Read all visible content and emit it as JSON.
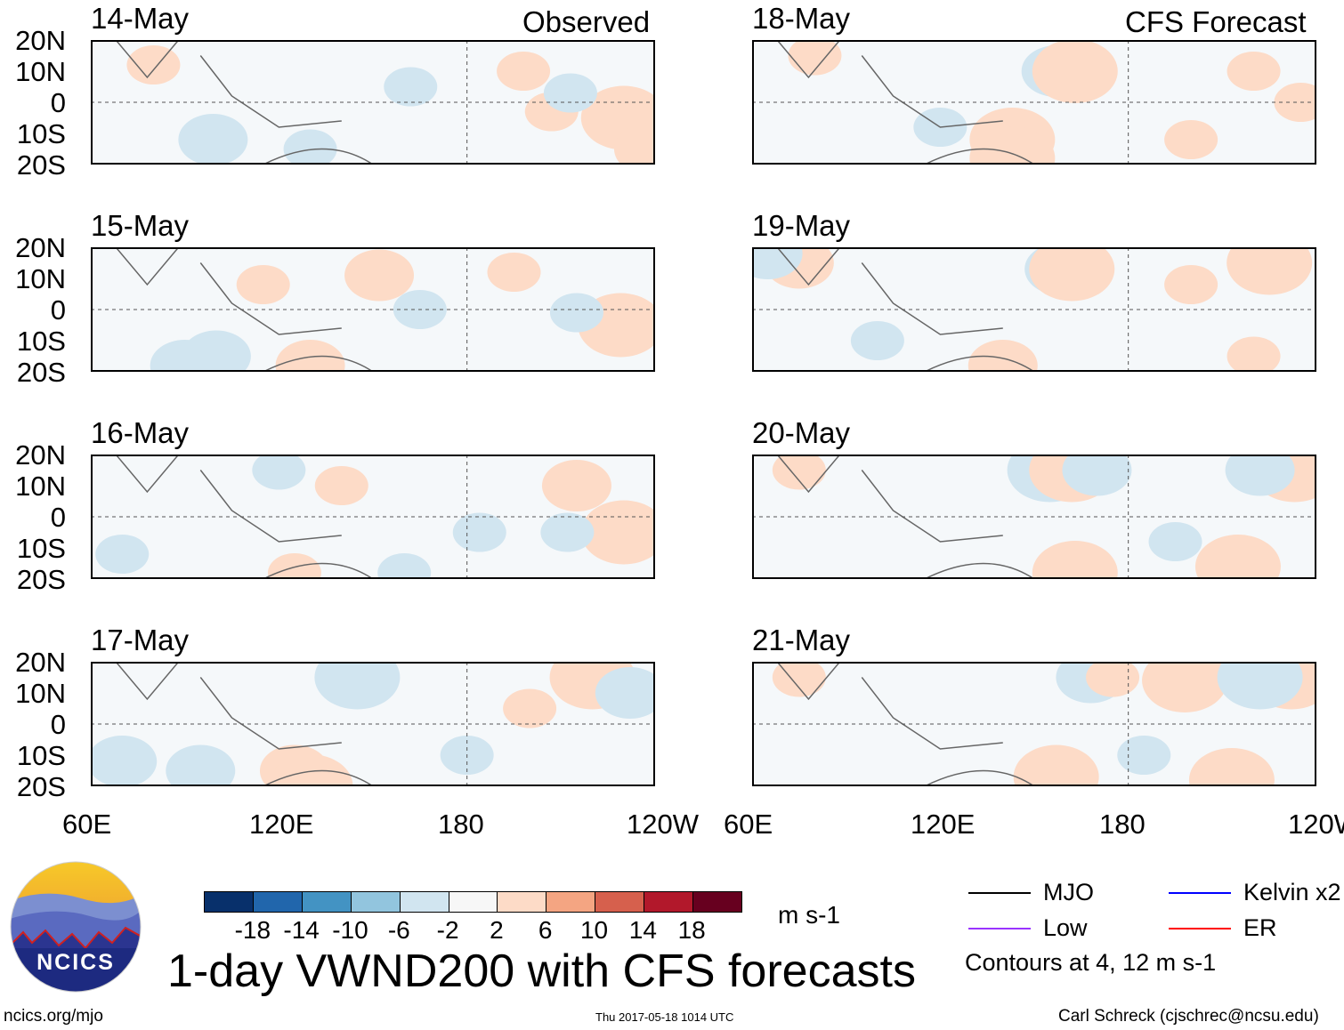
{
  "figure": {
    "title": "1-day VWND200 with CFS forecasts",
    "left_header": "Observed",
    "right_header": "CFS Forecast",
    "footer_left": "ncics.org/mjo",
    "footer_center": "Thu 2017-05-18 1014 UTC",
    "footer_right": "Carl Schreck (cjschrec@ncsu.edu)",
    "logo_text": "NCICS"
  },
  "axes": {
    "lat_labels": [
      "20N",
      "10N",
      "0",
      "10S",
      "20S"
    ],
    "lon_labels": [
      "60E",
      "120E",
      "180",
      "120W"
    ]
  },
  "colorbar": {
    "unit": "m s-1",
    "tick_labels": [
      "-18",
      "-14",
      "-10",
      "-6",
      "-2",
      "2",
      "6",
      "10",
      "14",
      "18"
    ],
    "colors": [
      "#08306b",
      "#2166ac",
      "#4393c3",
      "#92c5de",
      "#d1e5f0",
      "#f7f7f7",
      "#fddbc7",
      "#f4a582",
      "#d6604d",
      "#b2182b",
      "#67001f"
    ]
  },
  "legend": {
    "items": [
      {
        "label": "MJO",
        "color": "#000000"
      },
      {
        "label": "Kelvin x2",
        "color": "#0000ff"
      },
      {
        "label": "Low",
        "color": "#9933ff"
      },
      {
        "label": "ER",
        "color": "#ff0000"
      }
    ],
    "note": "Contours at 4, 12 m s-1"
  },
  "panels": [
    {
      "date": "14-May",
      "blobs": [
        [
          198,
          10,
          8
        ],
        [
          230,
          -5,
          14
        ],
        [
          207,
          -3,
          8
        ],
        [
          213,
          3,
          -8
        ],
        [
          99,
          -12,
          -10
        ],
        [
          162,
          5,
          -6
        ],
        [
          80,
          12,
          6
        ],
        [
          130,
          -15,
          -6
        ],
        [
          238,
          -15,
          10
        ]
      ]
    },
    {
      "date": "15-May",
      "blobs": [
        [
          152,
          11,
          10
        ],
        [
          229,
          -5,
          18
        ],
        [
          215,
          -1,
          -8
        ],
        [
          100,
          -15,
          -10
        ],
        [
          90,
          -18,
          -12
        ],
        [
          165,
          0,
          -6
        ],
        [
          195,
          12,
          6
        ],
        [
          130,
          -18,
          10
        ],
        [
          115,
          8,
          6
        ]
      ]
    },
    {
      "date": "16-May",
      "blobs": [
        [
          215,
          10,
          10
        ],
        [
          230,
          -5,
          14
        ],
        [
          120,
          15,
          -8
        ],
        [
          184,
          -5,
          -6
        ],
        [
          70,
          -12,
          -8
        ],
        [
          140,
          10,
          6
        ],
        [
          212,
          -5,
          -6
        ],
        [
          160,
          -18,
          -6
        ],
        [
          125,
          -18,
          6
        ]
      ]
    },
    {
      "date": "17-May",
      "blobs": [
        [
          145,
          15,
          -18
        ],
        [
          220,
          15,
          14
        ],
        [
          232,
          10,
          -10
        ],
        [
          125,
          -15,
          10
        ],
        [
          130,
          -20,
          14
        ],
        [
          70,
          -12,
          -10
        ],
        [
          95,
          -15,
          -10
        ],
        [
          200,
          5,
          6
        ],
        [
          180,
          -10,
          -6
        ]
      ]
    },
    {
      "date": "18-May",
      "blobs": [
        [
          157,
          10,
          -12
        ],
        [
          163,
          10,
          14
        ],
        [
          143,
          -12,
          14
        ],
        [
          143,
          -18,
          18
        ],
        [
          120,
          -8,
          -6
        ],
        [
          220,
          10,
          6
        ],
        [
          235,
          0,
          6
        ],
        [
          80,
          15,
          6
        ],
        [
          200,
          -12,
          6
        ]
      ]
    },
    {
      "date": "19-May",
      "blobs": [
        [
          158,
          13,
          -10
        ],
        [
          162,
          13,
          18
        ],
        [
          225,
          15,
          14
        ],
        [
          75,
          15,
          10
        ],
        [
          140,
          -18,
          10
        ],
        [
          220,
          -15,
          6
        ],
        [
          100,
          -10,
          -6
        ],
        [
          200,
          8,
          6
        ],
        [
          65,
          18,
          -10
        ]
      ]
    },
    {
      "date": "20-May",
      "blobs": [
        [
          155,
          15,
          -14
        ],
        [
          162,
          15,
          14
        ],
        [
          170,
          15,
          -10
        ],
        [
          233,
          15,
          18
        ],
        [
          222,
          15,
          -10
        ],
        [
          163,
          -18,
          14
        ],
        [
          215,
          -16,
          14
        ],
        [
          195,
          -8,
          -6
        ],
        [
          75,
          15,
          6
        ]
      ]
    },
    {
      "date": "21-May",
      "blobs": [
        [
          168,
          15,
          -12
        ],
        [
          175,
          15,
          8
        ],
        [
          198,
          14,
          14
        ],
        [
          232,
          15,
          18
        ],
        [
          222,
          15,
          -18
        ],
        [
          213,
          -18,
          18
        ],
        [
          157,
          -17,
          14
        ],
        [
          185,
          -10,
          -6
        ],
        [
          75,
          15,
          6
        ]
      ]
    }
  ]
}
